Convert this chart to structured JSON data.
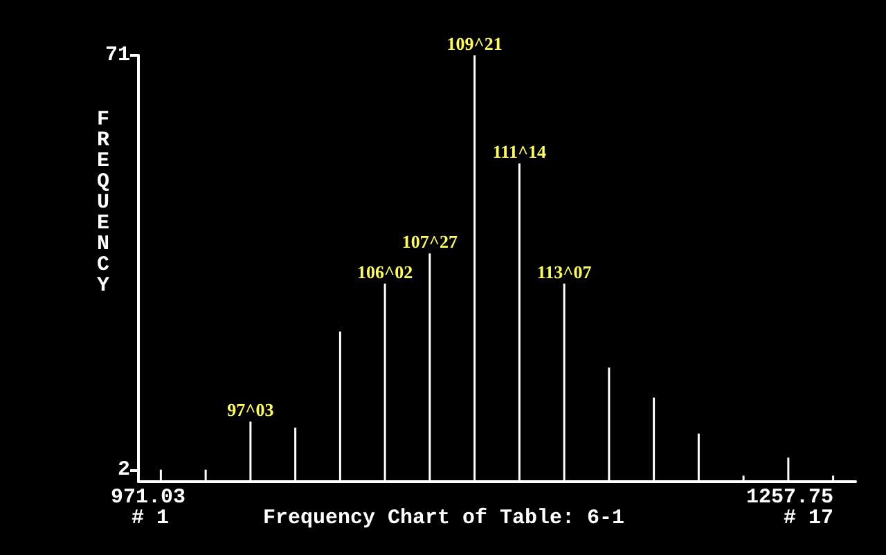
{
  "chart_data": {
    "type": "bar",
    "title": "Frequency Chart of Table: 6-1",
    "ylabel": "FREQUENCY",
    "annotations": [
      "971.03",
      "1257.75",
      "# 1",
      "# 17",
      {
        "text": "97^03",
        "y": 10
      },
      {
        "text": "106^02",
        "y": 33
      },
      {
        "text": "107^27",
        "y": 38
      },
      {
        "text": "109^21",
        "y": 71
      },
      {
        "text": "111^14",
        "y": 53
      },
      {
        "text": "113^07",
        "y": 33
      }
    ],
    "categories": [
      null,
      null,
      null,
      null,
      null,
      null,
      null,
      null,
      null,
      null,
      null,
      null,
      null,
      null,
      null,
      null
    ],
    "values": [
      2,
      2,
      10,
      9,
      25,
      33,
      38,
      71,
      53,
      33,
      19,
      14,
      8,
      1,
      4,
      1
    ],
    "color": "#ffffff",
    "ylim": [
      0,
      71
    ],
    "yticks": [
      2,
      71
    ],
    "grid": false
  }
}
